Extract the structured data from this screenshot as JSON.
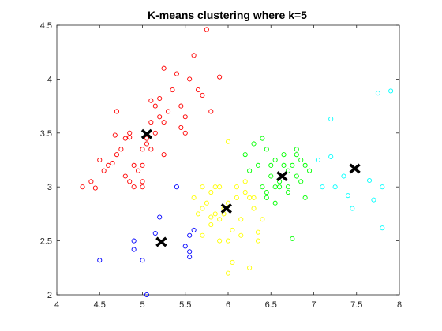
{
  "chart_data": {
    "type": "scatter",
    "title": "K-means clustering where k=5",
    "xlabel": "",
    "ylabel": "",
    "xlim": [
      4,
      8
    ],
    "ylim": [
      2,
      4.5
    ],
    "x_ticks": [
      4,
      4.5,
      5,
      5.5,
      6,
      6.5,
      7,
      7.5,
      8
    ],
    "y_ticks": [
      2,
      2.5,
      3,
      3.5,
      4,
      4.5
    ],
    "grid": false,
    "legend": "none",
    "series": [
      {
        "color": "#ff0000",
        "marker": "circle-open",
        "points": [
          [
            4.3,
            3.0
          ],
          [
            4.4,
            3.05
          ],
          [
            4.45,
            2.99
          ],
          [
            4.5,
            3.25
          ],
          [
            4.55,
            3.15
          ],
          [
            4.6,
            3.2
          ],
          [
            4.65,
            3.22
          ],
          [
            4.68,
            3.48
          ],
          [
            4.7,
            3.3
          ],
          [
            4.75,
            3.35
          ],
          [
            4.8,
            3.1
          ],
          [
            4.8,
            3.45
          ],
          [
            4.85,
            3.05
          ],
          [
            4.85,
            3.46
          ],
          [
            4.9,
            3.0
          ],
          [
            4.9,
            3.2
          ],
          [
            4.95,
            3.15
          ],
          [
            5.0,
            3.0
          ],
          [
            5.0,
            3.2
          ],
          [
            5.0,
            3.35
          ],
          [
            5.05,
            3.45
          ],
          [
            5.1,
            3.6
          ],
          [
            5.1,
            3.8
          ],
          [
            5.15,
            3.5
          ],
          [
            5.2,
            3.82
          ],
          [
            5.2,
            3.65
          ],
          [
            5.25,
            3.6
          ],
          [
            5.25,
            4.1
          ],
          [
            5.3,
            3.7
          ],
          [
            5.35,
            3.9
          ],
          [
            5.4,
            4.05
          ],
          [
            5.45,
            3.75
          ],
          [
            5.45,
            3.55
          ],
          [
            5.5,
            3.5
          ],
          [
            5.5,
            3.65
          ],
          [
            5.55,
            4.0
          ],
          [
            5.6,
            4.22
          ],
          [
            5.65,
            3.9
          ],
          [
            5.7,
            3.85
          ],
          [
            5.75,
            4.46
          ],
          [
            5.8,
            3.7
          ],
          [
            5.9,
            4.02
          ],
          [
            5.05,
            3.4
          ],
          [
            4.85,
            3.5
          ],
          [
            5.0,
            3.05
          ],
          [
            5.15,
            3.75
          ],
          [
            5.25,
            3.3
          ],
          [
            4.7,
            3.7
          ],
          [
            5.1,
            3.35
          ]
        ]
      },
      {
        "color": "#0000ff",
        "marker": "circle-open",
        "points": [
          [
            4.5,
            2.32
          ],
          [
            4.9,
            2.5
          ],
          [
            4.9,
            2.42
          ],
          [
            5.0,
            2.32
          ],
          [
            5.05,
            2.0
          ],
          [
            5.15,
            2.57
          ],
          [
            5.2,
            2.72
          ],
          [
            5.4,
            3.0
          ],
          [
            5.55,
            2.4
          ],
          [
            5.6,
            2.6
          ],
          [
            5.55,
            2.55
          ],
          [
            5.55,
            2.35
          ],
          [
            5.5,
            2.45
          ]
        ]
      },
      {
        "color": "#ffff00",
        "marker": "circle-open",
        "points": [
          [
            5.6,
            2.9
          ],
          [
            5.7,
            2.8
          ],
          [
            5.7,
            2.55
          ],
          [
            5.8,
            2.65
          ],
          [
            5.8,
            2.72
          ],
          [
            5.85,
            2.75
          ],
          [
            5.9,
            2.7
          ],
          [
            5.9,
            3.0
          ],
          [
            5.95,
            2.75
          ],
          [
            6.0,
            2.2
          ],
          [
            6.0,
            3.42
          ],
          [
            6.0,
            2.85
          ],
          [
            6.05,
            2.6
          ],
          [
            6.05,
            2.3
          ],
          [
            6.1,
            2.9
          ],
          [
            6.15,
            2.7
          ],
          [
            6.2,
            2.95
          ],
          [
            6.2,
            3.05
          ],
          [
            6.25,
            2.9
          ],
          [
            6.25,
            2.25
          ],
          [
            6.3,
            2.8
          ],
          [
            6.35,
            2.5
          ],
          [
            6.35,
            2.58
          ],
          [
            6.4,
            2.7
          ],
          [
            5.7,
            3.0
          ],
          [
            5.8,
            2.95
          ],
          [
            5.95,
            2.8
          ],
          [
            6.1,
            3.0
          ],
          [
            5.75,
            2.85
          ],
          [
            5.65,
            2.75
          ],
          [
            6.3,
            2.9
          ],
          [
            6.0,
            2.5
          ],
          [
            5.9,
            2.5
          ],
          [
            5.85,
            3.0
          ],
          [
            6.15,
            2.55
          ]
        ]
      },
      {
        "color": "#00ff00",
        "marker": "circle-open",
        "points": [
          [
            6.3,
            3.4
          ],
          [
            6.35,
            3.2
          ],
          [
            6.4,
            3.0
          ],
          [
            6.4,
            3.45
          ],
          [
            6.45,
            2.95
          ],
          [
            6.5,
            3.1
          ],
          [
            6.5,
            3.2
          ],
          [
            6.55,
            3.25
          ],
          [
            6.55,
            2.85
          ],
          [
            6.6,
            3.05
          ],
          [
            6.6,
            3.0
          ],
          [
            6.65,
            3.3
          ],
          [
            6.7,
            3.0
          ],
          [
            6.7,
            3.15
          ],
          [
            6.75,
            3.2
          ],
          [
            6.75,
            2.52
          ],
          [
            6.8,
            3.3
          ],
          [
            6.8,
            3.1
          ],
          [
            6.85,
            3.25
          ],
          [
            6.85,
            3.05
          ],
          [
            6.9,
            2.9
          ],
          [
            6.9,
            3.2
          ],
          [
            6.95,
            3.15
          ],
          [
            6.2,
            3.3
          ],
          [
            6.45,
            3.35
          ],
          [
            6.55,
            3.0
          ],
          [
            6.65,
            3.2
          ],
          [
            6.8,
            3.35
          ],
          [
            6.25,
            3.15
          ],
          [
            6.7,
            2.95
          ],
          [
            6.45,
            2.9
          ]
        ]
      },
      {
        "color": "#00ffff",
        "marker": "circle-open",
        "points": [
          [
            7.05,
            3.25
          ],
          [
            7.1,
            3.0
          ],
          [
            7.2,
            3.63
          ],
          [
            7.25,
            3.0
          ],
          [
            7.2,
            3.28
          ],
          [
            7.4,
            2.92
          ],
          [
            7.45,
            2.8
          ],
          [
            7.65,
            3.06
          ],
          [
            7.7,
            2.88
          ],
          [
            7.8,
            2.62
          ],
          [
            7.8,
            3.0
          ],
          [
            7.75,
            3.87
          ],
          [
            7.9,
            3.89
          ],
          [
            7.35,
            3.1
          ]
        ]
      }
    ],
    "centroids": {
      "color": "#000000",
      "marker": "x",
      "points": [
        [
          5.05,
          3.49
        ],
        [
          5.22,
          2.49
        ],
        [
          5.98,
          2.8
        ],
        [
          6.63,
          3.1
        ],
        [
          7.48,
          3.17
        ]
      ]
    }
  }
}
